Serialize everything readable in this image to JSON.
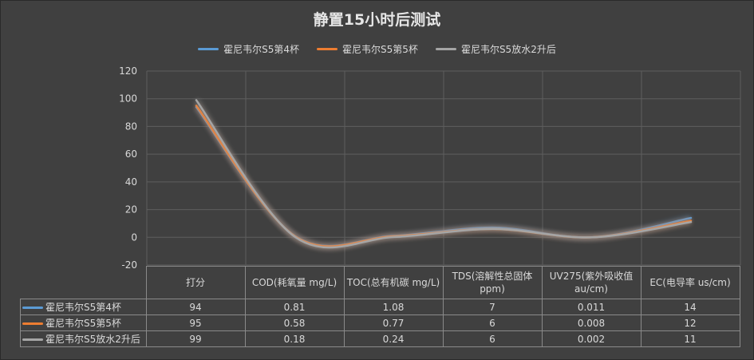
{
  "chart_data": {
    "type": "line",
    "title": "静置15小时后测试",
    "categories": [
      "打分",
      "COD(耗氧量 mg/L)",
      "TOC(总有机碳 mg/L)",
      "TDS(溶解性总固体 ppm)",
      "UV275(紫外吸收值 au/cm)",
      "EC(电导率 us/cm)"
    ],
    "category_lines": [
      [
        "打分"
      ],
      [
        "COD(耗氧量 mg/L)"
      ],
      [
        "TOC(总有机碳 mg/L)"
      ],
      [
        "TDS(溶解性总固体",
        "ppm)"
      ],
      [
        "UV275(紫外吸收值",
        "au/cm)"
      ],
      [
        "EC(电导率 us/cm)"
      ]
    ],
    "series": [
      {
        "name": "霍尼韦尔S5第4杯",
        "color": "#5b9bd5",
        "values": [
          94,
          0.81,
          1.08,
          7,
          0.011,
          14
        ],
        "labels": [
          "94",
          "0.81",
          "1.08",
          "7",
          "0.011",
          "14"
        ]
      },
      {
        "name": "霍尼韦尔S5第5杯",
        "color": "#ed7d31",
        "values": [
          95,
          0.58,
          0.77,
          6,
          0.008,
          12
        ],
        "labels": [
          "95",
          "0.58",
          "0.77",
          "6",
          "0.008",
          "12"
        ]
      },
      {
        "name": "霍尼韦尔S5放水2升后",
        "color": "#a5a5a5",
        "values": [
          99,
          0.18,
          0.24,
          6,
          0.002,
          11
        ],
        "labels": [
          "99",
          "0.18",
          "0.24",
          "6",
          "0.002",
          "11"
        ]
      }
    ],
    "ylim": [
      -20,
      120
    ],
    "yticks": [
      -20,
      0,
      20,
      40,
      60,
      80,
      100,
      120
    ],
    "grid": true,
    "smooth": true,
    "legend": "top",
    "data_table": true
  }
}
